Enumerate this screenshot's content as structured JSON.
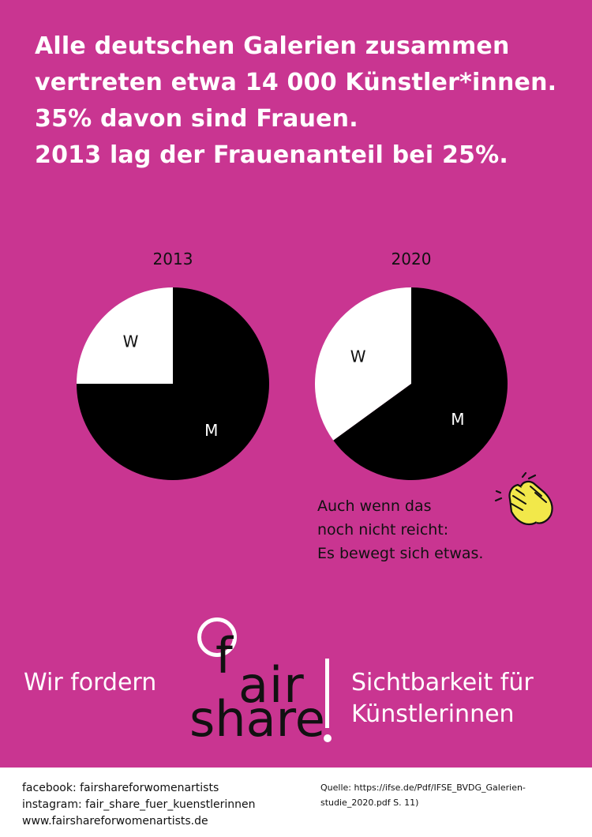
{
  "headline": {
    "lines": [
      "Alle deutschen Galerien zusammen",
      "vertreten etwa 14 000 Künstler*innen.",
      "35% davon sind Frauen.",
      "2013 lag der Frauenanteil bei 25%."
    ]
  },
  "chart_data": [
    {
      "type": "pie",
      "title": "2013",
      "categories": [
        "W",
        "M"
      ],
      "values": [
        25,
        75
      ],
      "colors": [
        "#ffffff",
        "#000000"
      ]
    },
    {
      "type": "pie",
      "title": "2020",
      "categories": [
        "W",
        "M"
      ],
      "values": [
        35,
        65
      ],
      "colors": [
        "#ffffff",
        "#000000"
      ]
    }
  ],
  "note": {
    "lines": [
      "Auch wenn das",
      "noch nicht reicht:",
      "Es bewegt sich etwas."
    ],
    "icon": "clapping-hands-icon"
  },
  "demand": {
    "left": "Wir fordern",
    "right_lines": [
      "Sichtbarkeit für",
      "Künstlerinnen"
    ]
  },
  "logo": {
    "f": "f",
    "air": "air",
    "share": "share"
  },
  "footer": {
    "left_lines": [
      "facebook: fairshareforwomenartists",
      "instagram: fair_share_fuer_kuenstlerinnen",
      "www.fairshareforwomenartists.de"
    ],
    "source_lines": [
      "Quelle: https://ifse.de/Pdf/IFSE_BVDG_Galerien-",
      "studie_2020.pdf S. 11)"
    ]
  },
  "colors": {
    "background": "#c93591",
    "text_light": "#ffffff",
    "text_dark": "#111111",
    "accent_yellow": "#f2e84a"
  }
}
